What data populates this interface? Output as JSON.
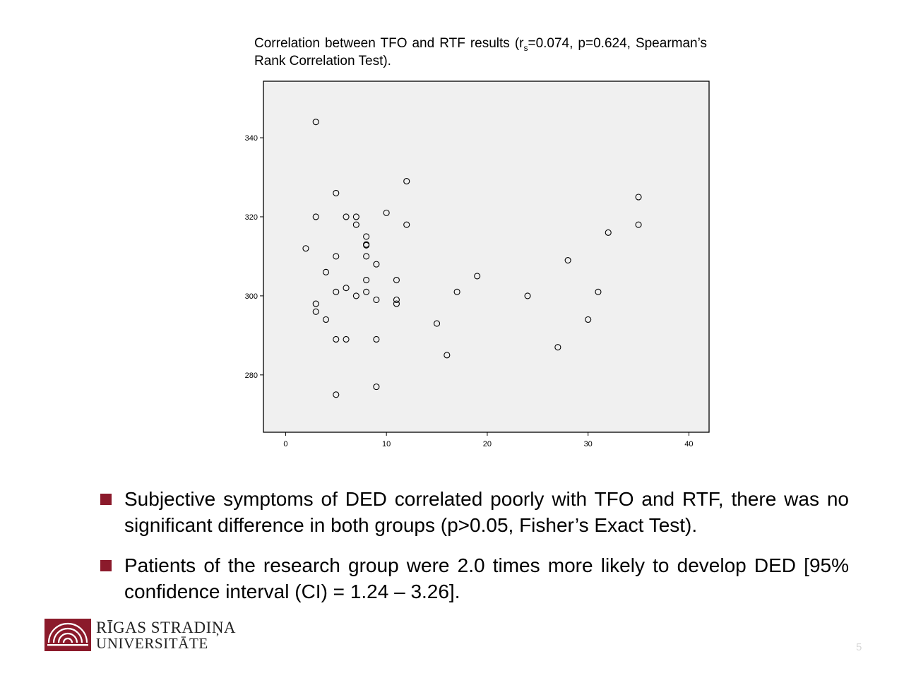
{
  "chart_data": {
    "type": "scatter",
    "title_parts": {
      "before": "Correlation between TFO and RTF results (r",
      "sub": "s",
      "after": "=0.074, p=0.624, Spearman’s Rank Correlation Test)."
    },
    "xlabel": "",
    "ylabel": "",
    "xlim": [
      -2.2,
      42.0
    ],
    "ylim": [
      265.5,
      354.3
    ],
    "xticks": [
      0,
      10,
      20,
      30,
      40
    ],
    "yticks": [
      280,
      300,
      320,
      340
    ],
    "grid": false,
    "plot_background": "#f0f0f0",
    "points": [
      {
        "x": 3,
        "y": 344
      },
      {
        "x": 12,
        "y": 329
      },
      {
        "x": 5,
        "y": 326
      },
      {
        "x": 10,
        "y": 321
      },
      {
        "x": 3,
        "y": 320
      },
      {
        "x": 6,
        "y": 320
      },
      {
        "x": 7,
        "y": 320
      },
      {
        "x": 7,
        "y": 318
      },
      {
        "x": 12,
        "y": 318
      },
      {
        "x": 8,
        "y": 315
      },
      {
        "x": 8,
        "y": 313
      },
      {
        "x": 8,
        "y": 312.8
      },
      {
        "x": 2,
        "y": 312
      },
      {
        "x": 5,
        "y": 310
      },
      {
        "x": 8,
        "y": 310
      },
      {
        "x": 9,
        "y": 308
      },
      {
        "x": 4,
        "y": 306
      },
      {
        "x": 8,
        "y": 304
      },
      {
        "x": 11,
        "y": 304
      },
      {
        "x": 6,
        "y": 302
      },
      {
        "x": 5,
        "y": 301
      },
      {
        "x": 8,
        "y": 301
      },
      {
        "x": 7,
        "y": 300
      },
      {
        "x": 9,
        "y": 299
      },
      {
        "x": 11,
        "y": 299
      },
      {
        "x": 3,
        "y": 298
      },
      {
        "x": 11,
        "y": 298
      },
      {
        "x": 3,
        "y": 296
      },
      {
        "x": 4,
        "y": 294
      },
      {
        "x": 5,
        "y": 289
      },
      {
        "x": 6,
        "y": 289
      },
      {
        "x": 9,
        "y": 289
      },
      {
        "x": 9,
        "y": 277
      },
      {
        "x": 5,
        "y": 275
      },
      {
        "x": 15,
        "y": 293
      },
      {
        "x": 16,
        "y": 285
      },
      {
        "x": 17,
        "y": 301
      },
      {
        "x": 19,
        "y": 305
      },
      {
        "x": 24,
        "y": 300
      },
      {
        "x": 27,
        "y": 287
      },
      {
        "x": 28,
        "y": 309
      },
      {
        "x": 30,
        "y": 294
      },
      {
        "x": 31,
        "y": 301
      },
      {
        "x": 32,
        "y": 316
      },
      {
        "x": 35,
        "y": 325
      },
      {
        "x": 35,
        "y": 318
      }
    ]
  },
  "bullets": [
    {
      "text": "Subjective symptoms of DED correlated poorly with TFO and RTF, there was no significant difference in both groups (p>0.05, Fisher’s Exact Test)."
    },
    {
      "text": "Patients of the research group were 2.0 times more likely to develop DED [95% confidence interval (CI) = 1.24 – 3.26]."
    }
  ],
  "logo": {
    "line1": "RĪGAS STRADIŅA",
    "line2": "UNIVERSITĀTE",
    "icon": "university-seal-icon"
  },
  "page_number": "5",
  "colors": {
    "accent": "#8b1a2b",
    "plot_background": "#f0f0f0",
    "page_number": "#d8d8d8"
  }
}
